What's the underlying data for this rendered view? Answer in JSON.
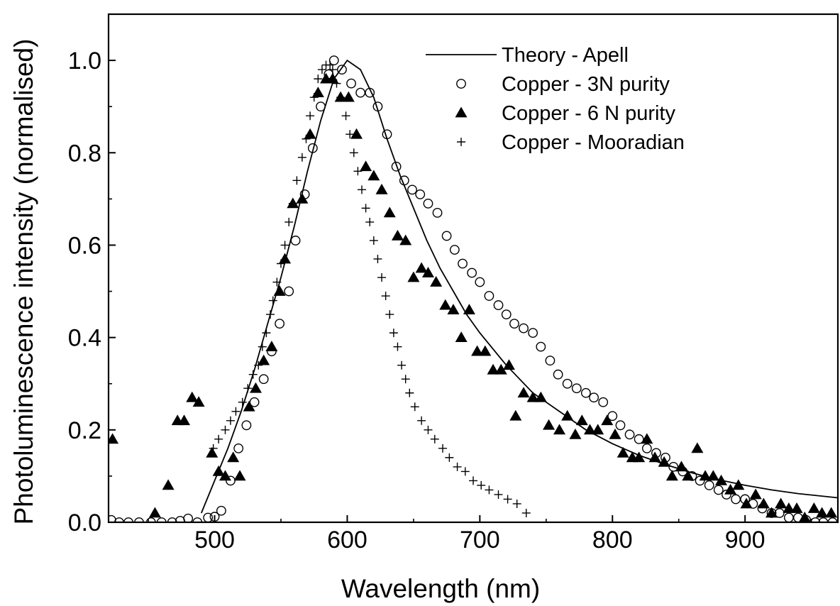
{
  "chart_data": {
    "type": "scatter",
    "title": "",
    "xlabel": "Wavelength (nm)",
    "ylabel": "Photoluminescence intensity (normalised)",
    "xlim": [
      420,
      970
    ],
    "ylim": [
      0.0,
      1.1
    ],
    "x_ticks": [
      500,
      600,
      700,
      800,
      900
    ],
    "x_tick_labels": [
      "500",
      "600",
      "700",
      "800",
      "900"
    ],
    "y_ticks": [
      0.0,
      0.2,
      0.4,
      0.6,
      0.8,
      1.0
    ],
    "y_tick_labels": [
      "0.0",
      "0.2",
      "0.4",
      "0.6",
      "0.8",
      "1.0"
    ],
    "grid": false,
    "legend_position": "top-right",
    "series": [
      {
        "name": "Theory - Apell",
        "style": "line",
        "color": "#000000",
        "x": [
          490,
          500,
          510,
          520,
          530,
          540,
          550,
          560,
          570,
          580,
          590,
          600,
          610,
          620,
          630,
          640,
          650,
          660,
          670,
          680,
          690,
          700,
          720,
          740,
          760,
          780,
          800,
          820,
          840,
          860,
          880,
          900,
          920,
          940,
          970
        ],
        "y": [
          0.02,
          0.09,
          0.16,
          0.24,
          0.33,
          0.43,
          0.53,
          0.64,
          0.76,
          0.87,
          0.96,
          1.0,
          0.98,
          0.92,
          0.83,
          0.75,
          0.68,
          0.61,
          0.55,
          0.5,
          0.45,
          0.41,
          0.34,
          0.28,
          0.24,
          0.2,
          0.17,
          0.145,
          0.125,
          0.107,
          0.092,
          0.08,
          0.07,
          0.062,
          0.053
        ]
      },
      {
        "name": "Copper - 3N purity",
        "style": "open-circle",
        "color": "#000000",
        "x": [
          422,
          428,
          435,
          443,
          452,
          460,
          468,
          474,
          480,
          487,
          495,
          500,
          505,
          512,
          518,
          524,
          530,
          537,
          543,
          549,
          556,
          561,
          568,
          574,
          580,
          586,
          590,
          596,
          603,
          610,
          617,
          623,
          630,
          637,
          643,
          649,
          655,
          661,
          668,
          675,
          681,
          687,
          694,
          700,
          707,
          714,
          720,
          726,
          733,
          740,
          746,
          753,
          759,
          766,
          773,
          780,
          786,
          793,
          800,
          806,
          813,
          820,
          826,
          833,
          840,
          846,
          853,
          860,
          866,
          873,
          880,
          886,
          893,
          900,
          906,
          913,
          920,
          926,
          933,
          940,
          946,
          953,
          959,
          966
        ],
        "y": [
          0.005,
          0.0,
          0.0,
          0.0,
          0.0,
          0.0,
          0.0,
          0.003,
          0.008,
          0.0,
          0.01,
          0.012,
          0.025,
          0.09,
          0.16,
          0.21,
          0.26,
          0.31,
          0.37,
          0.43,
          0.5,
          0.61,
          0.71,
          0.81,
          0.9,
          0.97,
          1.0,
          0.98,
          0.95,
          0.93,
          0.93,
          0.9,
          0.84,
          0.77,
          0.74,
          0.72,
          0.71,
          0.69,
          0.67,
          0.62,
          0.59,
          0.56,
          0.54,
          0.52,
          0.49,
          0.47,
          0.45,
          0.43,
          0.42,
          0.41,
          0.38,
          0.35,
          0.32,
          0.3,
          0.29,
          0.28,
          0.27,
          0.26,
          0.23,
          0.21,
          0.19,
          0.18,
          0.16,
          0.15,
          0.14,
          0.12,
          0.11,
          0.1,
          0.09,
          0.08,
          0.07,
          0.06,
          0.05,
          0.05,
          0.04,
          0.03,
          0.02,
          0.02,
          0.01,
          0.01,
          0.005,
          0.0,
          0.0,
          0.0
        ]
      },
      {
        "name": "Copper - 6 N purity",
        "style": "filled-triangle",
        "color": "#000000",
        "x": [
          423,
          455,
          465,
          472,
          477,
          483,
          488,
          498,
          503,
          508,
          514,
          519,
          526,
          531,
          537,
          543,
          549,
          553,
          559,
          566,
          572,
          578,
          584,
          589,
          595,
          601,
          607,
          614,
          620,
          626,
          632,
          638,
          644,
          650,
          656,
          661,
          667,
          674,
          680,
          686,
          692,
          698,
          704,
          710,
          716,
          722,
          727,
          733,
          740,
          746,
          752,
          760,
          766,
          772,
          777,
          783,
          789,
          796,
          802,
          808,
          815,
          820,
          826,
          832,
          839,
          845,
          852,
          857,
          864,
          870,
          876,
          882,
          889,
          895,
          901,
          908,
          914,
          920,
          927,
          933,
          939,
          945,
          952,
          958,
          965
        ],
        "y": [
          0.18,
          0.02,
          0.08,
          0.22,
          0.22,
          0.27,
          0.26,
          0.15,
          0.11,
          0.1,
          0.14,
          0.1,
          0.25,
          0.29,
          0.35,
          0.38,
          0.5,
          0.57,
          0.69,
          0.7,
          0.84,
          0.93,
          0.96,
          0.96,
          0.92,
          0.92,
          0.84,
          0.77,
          0.75,
          0.72,
          0.67,
          0.62,
          0.61,
          0.53,
          0.55,
          0.54,
          0.52,
          0.47,
          0.46,
          0.4,
          0.46,
          0.37,
          0.37,
          0.33,
          0.33,
          0.34,
          0.23,
          0.28,
          0.27,
          0.27,
          0.21,
          0.2,
          0.23,
          0.19,
          0.22,
          0.2,
          0.2,
          0.22,
          0.19,
          0.15,
          0.14,
          0.14,
          0.18,
          0.14,
          0.13,
          0.1,
          0.12,
          0.1,
          0.16,
          0.1,
          0.1,
          0.09,
          0.07,
          0.08,
          0.04,
          0.06,
          0.04,
          0.02,
          0.04,
          0.03,
          0.03,
          0.01,
          0.03,
          0.02,
          0.02
        ]
      },
      {
        "name": "Copper - Mooradian",
        "style": "plus",
        "color": "#000000",
        "x": [
          499,
          503,
          508,
          512,
          516,
          521,
          525,
          529,
          533,
          536,
          539,
          542,
          544,
          547,
          550,
          553,
          556,
          559,
          562,
          566,
          569,
          572,
          575,
          578,
          581,
          584,
          587,
          589,
          592,
          595,
          599,
          602,
          605,
          608,
          611,
          614,
          617,
          620,
          623,
          626,
          629,
          632,
          635,
          638,
          641,
          644,
          647,
          651,
          656,
          661,
          666,
          672,
          677,
          683,
          689,
          695,
          701,
          707,
          714,
          721,
          728,
          735
        ],
        "y": [
          0.16,
          0.18,
          0.2,
          0.22,
          0.24,
          0.26,
          0.29,
          0.32,
          0.34,
          0.38,
          0.41,
          0.45,
          0.48,
          0.52,
          0.56,
          0.6,
          0.65,
          0.69,
          0.74,
          0.79,
          0.83,
          0.88,
          0.92,
          0.96,
          0.98,
          0.99,
          0.99,
          0.98,
          0.95,
          0.92,
          0.88,
          0.84,
          0.8,
          0.76,
          0.72,
          0.68,
          0.65,
          0.61,
          0.57,
          0.53,
          0.49,
          0.45,
          0.41,
          0.38,
          0.34,
          0.31,
          0.28,
          0.25,
          0.22,
          0.2,
          0.18,
          0.16,
          0.14,
          0.12,
          0.11,
          0.09,
          0.08,
          0.07,
          0.06,
          0.05,
          0.04,
          0.02
        ]
      }
    ]
  }
}
